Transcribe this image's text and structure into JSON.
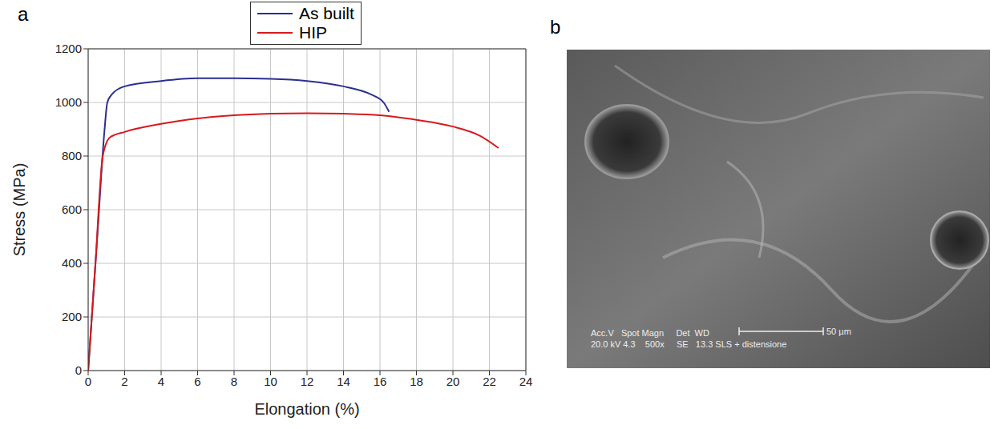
{
  "chart_data": {
    "type": "line",
    "panel_label": "a",
    "x_label": "Elongation (%)",
    "y_label": "Stress (MPa)",
    "xlim": [
      0,
      24
    ],
    "xticks": [
      0,
      2,
      4,
      6,
      8,
      10,
      12,
      14,
      16,
      18,
      20,
      22,
      24
    ],
    "ylim": [
      0,
      1200
    ],
    "yticks": [
      0,
      200,
      400,
      600,
      800,
      1000,
      1200
    ],
    "grid": true,
    "legend": "top",
    "series": [
      {
        "name": "As built",
        "color": "#2b2f8f",
        "x": [
          0,
          0.5,
          0.9,
          1.05,
          1.3,
          2,
          4,
          6,
          8,
          10,
          12,
          14,
          15.5,
          16.2,
          16.5
        ],
        "values": [
          0,
          500,
          900,
          1000,
          1030,
          1060,
          1080,
          1090,
          1090,
          1088,
          1080,
          1060,
          1030,
          1000,
          965
        ]
      },
      {
        "name": "HIP",
        "color": "#d7191c",
        "x": [
          0,
          0.4,
          0.8,
          1.2,
          2,
          4,
          6,
          8,
          10,
          12,
          14,
          16,
          18,
          20,
          21.5,
          22.5
        ],
        "values": [
          0,
          400,
          800,
          870,
          890,
          920,
          940,
          952,
          958,
          960,
          958,
          952,
          935,
          910,
          875,
          830
        ]
      }
    ]
  },
  "image": {
    "panel_label": "b",
    "info_lines": [
      "Acc.V   Spot Magn     Det  WD",
      "20.0 kV 4.3    500x     SE   13.3 SLS + distensione"
    ],
    "scale_bar": "50 µm"
  }
}
